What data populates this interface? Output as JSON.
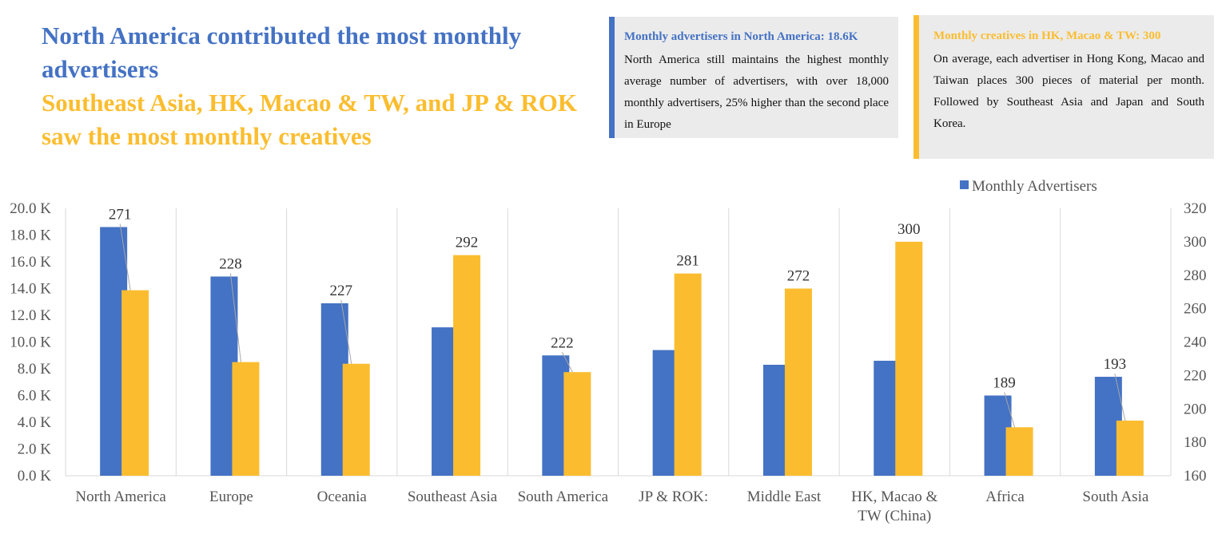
{
  "headline": {
    "line1": "North America contributed the most monthly advertisers",
    "line2": "Southeast Asia, HK, Macao & TW, and JP & ROK saw the most monthly creatives"
  },
  "cards": {
    "left": {
      "title": "Monthly advertisers in North America: 18.6K",
      "body": "North America still maintains the highest monthly average number of advertisers, with over 18,000 monthly advertisers, 25% higher than the second place in Europe"
    },
    "right": {
      "title": "Monthly creatives in HK, Macao & TW: 300",
      "body": "On average, each advertiser in Hong Kong, Macao and Taiwan places 300 pieces of material per month. Followed by Southeast Asia and Japan and South Korea."
    }
  },
  "colors": {
    "blue": "#4472c4",
    "gold": "#fbbd2f",
    "grid": "#d9d9d9",
    "leader": "#a6a6a6"
  },
  "chart_data": {
    "type": "bar",
    "categories": [
      "North America",
      "Europe",
      "Oceania",
      "Southeast Asia",
      "South America",
      "JP & ROK:",
      "Middle East",
      "HK, Macao & TW (China)",
      "Africa",
      "South Asia"
    ],
    "category_lines": [
      [
        "North America"
      ],
      [
        "Europe"
      ],
      [
        "Oceania"
      ],
      [
        "Southeast Asia"
      ],
      [
        "South America"
      ],
      [
        "JP & ROK:"
      ],
      [
        "Middle East"
      ],
      [
        "HK, Macao &",
        "TW (China)"
      ],
      [
        "Africa"
      ],
      [
        "South Asia"
      ]
    ],
    "series": [
      {
        "name": "Monthly Advertisers",
        "axis": "left",
        "values": [
          18.6,
          14.9,
          12.9,
          11.1,
          9.0,
          9.4,
          8.3,
          8.6,
          6.0,
          7.4
        ]
      },
      {
        "name": "Monthly Creatives",
        "axis": "right",
        "values": [
          271,
          228,
          227,
          292,
          222,
          281,
          272,
          300,
          189,
          193
        ]
      }
    ],
    "left_axis": {
      "min": 0,
      "max": 20,
      "step": 2,
      "labels": [
        "0.0 K",
        "2.0 K",
        "4.0 K",
        "6.0 K",
        "8.0 K",
        "10.0 K",
        "12.0 K",
        "14.0 K",
        "16.0 K",
        "18.0 K",
        "20.0 K"
      ]
    },
    "right_axis": {
      "min": 160,
      "max": 320,
      "step": 20,
      "labels": [
        "160",
        "180",
        "200",
        "220",
        "240",
        "260",
        "280",
        "300",
        "320"
      ]
    },
    "legend": {
      "label": "Monthly Advertisers",
      "position": "top-right"
    },
    "grid": "vertical"
  }
}
